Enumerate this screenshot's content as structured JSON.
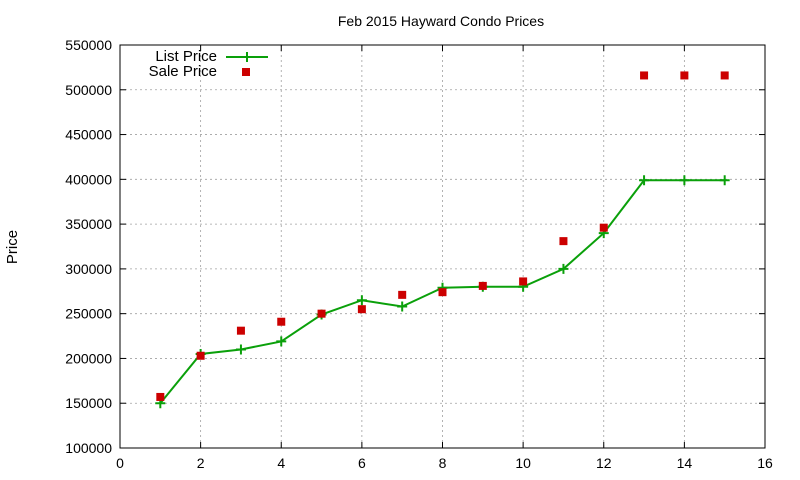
{
  "chart_data": {
    "type": "line",
    "title": "Feb 2015 Hayward Condo Prices",
    "xlabel": "",
    "ylabel": "Price",
    "xlim": [
      0,
      16
    ],
    "ylim": [
      100000,
      550000
    ],
    "xticks": [
      0,
      2,
      4,
      6,
      8,
      10,
      12,
      14,
      16
    ],
    "yticks": [
      100000,
      150000,
      200000,
      250000,
      300000,
      350000,
      400000,
      450000,
      500000,
      550000
    ],
    "grid": true,
    "legend_position": "top-left",
    "series": [
      {
        "name": "List Price",
        "style": "line-with-plus-markers",
        "color": "#0aa00a",
        "x": [
          1,
          2,
          3,
          4,
          5,
          6,
          7,
          8,
          9,
          10,
          11,
          12,
          13,
          14,
          15
        ],
        "values": [
          150000,
          205000,
          210000,
          219000,
          249000,
          265000,
          258000,
          279000,
          280000,
          280000,
          300000,
          340000,
          399000,
          399000,
          399000
        ]
      },
      {
        "name": "Sale Price",
        "style": "square-markers",
        "color": "#cc0000",
        "x": [
          1,
          2,
          3,
          4,
          5,
          6,
          7,
          8,
          9,
          10,
          11,
          12,
          13,
          14,
          15
        ],
        "values": [
          157000,
          203000,
          231000,
          241000,
          250000,
          255000,
          271000,
          274000,
          281000,
          286000,
          331000,
          346000,
          516000,
          516000,
          516000
        ]
      }
    ]
  }
}
